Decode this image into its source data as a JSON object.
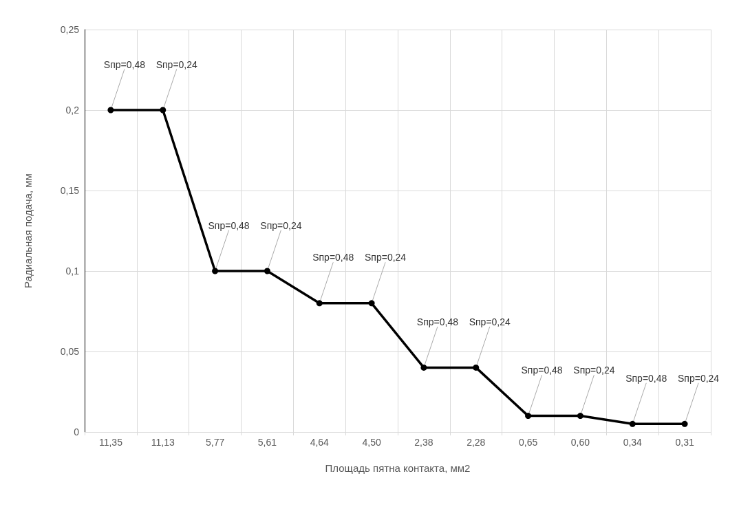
{
  "chart_data": {
    "type": "line",
    "xlabel": "Площадь пятна контакта, мм2",
    "ylabel": "Радиальная подача, мм",
    "categories": [
      "11,35",
      "11,13",
      "5,77",
      "5,61",
      "4,64",
      "4,50",
      "2,38",
      "2,28",
      "0,65",
      "0,60",
      "0,34",
      "0,31"
    ],
    "series": [
      {
        "color": "#000000",
        "values": [
          0.2,
          0.2,
          0.1,
          0.1,
          0.08,
          0.08,
          0.04,
          0.04,
          0.01,
          0.01,
          0.005,
          0.005
        ]
      }
    ],
    "ylim": [
      0,
      0.25
    ],
    "yticks": [
      0,
      {
        "value": 0.05,
        "label": "0,05"
      },
      {
        "value": 0.1,
        "label": "0,1"
      },
      {
        "value": 0.15,
        "label": "0,15"
      },
      {
        "value": 0.2,
        "label": "0,2"
      },
      {
        "value": 0.25,
        "label": "0,25"
      }
    ],
    "grid": true,
    "marker": "circle",
    "line_style": "solid",
    "annotations": [
      {
        "text": "Sпр=0,48",
        "x": "11,35",
        "y": 0.2
      },
      {
        "text": "Sпр=0,24",
        "x": "11,13",
        "y": 0.2
      },
      {
        "text": "Sпр=0,48",
        "x": "5,77",
        "y": 0.1
      },
      {
        "text": "Sпр=0,24",
        "x": "5,61",
        "y": 0.1
      },
      {
        "text": "Sпр=0,48",
        "x": "4,64",
        "y": 0.08
      },
      {
        "text": "Sпр=0,24",
        "x": "4,50",
        "y": 0.08
      },
      {
        "text": "Sпр=0,48",
        "x": "2,38",
        "y": 0.04
      },
      {
        "text": "Sпр=0,24",
        "x": "2,28",
        "y": 0.04
      },
      {
        "text": "Sпр=0,48",
        "x": "0,65",
        "y": 0.01
      },
      {
        "text": "Sпр=0,24",
        "x": "0,60",
        "y": 0.01
      },
      {
        "text": "Sпр=0,48",
        "x": "0,34",
        "y": 0.005
      },
      {
        "text": "Sпр=0,24",
        "x": "0,31",
        "y": 0.005
      }
    ]
  }
}
